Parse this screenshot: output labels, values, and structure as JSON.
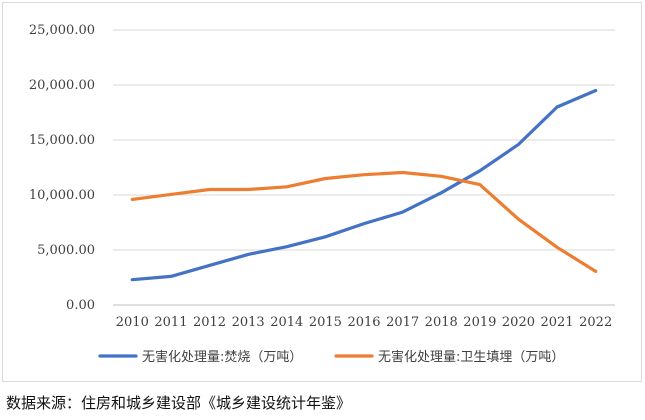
{
  "chart_data": {
    "type": "line",
    "title": "",
    "xlabel": "",
    "ylabel": "",
    "x": [
      2010,
      2011,
      2012,
      2013,
      2014,
      2015,
      2016,
      2017,
      2018,
      2019,
      2020,
      2021,
      2022
    ],
    "ylim": [
      0,
      25000
    ],
    "yticks": [
      "0.00",
      "5,000.00",
      "10,000.00",
      "15,000.00",
      "20,000.00",
      "25,000.00"
    ],
    "ytick_values": [
      0,
      5000,
      10000,
      15000,
      20000,
      25000
    ],
    "grid": "horizontal",
    "legend_position": "bottom",
    "series": [
      {
        "name": "无害化处理量:焚烧（万吨）",
        "color": "#4472c4",
        "values": [
          2300,
          2600,
          3600,
          4600,
          5300,
          6200,
          7400,
          8450,
          10200,
          12200,
          14600,
          18000,
          19500
        ]
      },
      {
        "name": "无害化处理量:卫生填埋（万吨）",
        "color": "#ed7d31",
        "values": [
          9600,
          10050,
          10500,
          10500,
          10750,
          11500,
          11850,
          12050,
          11700,
          10950,
          7800,
          5250,
          3050
        ]
      }
    ]
  },
  "source_text": "数据来源：住房和城乡建设部《城乡建设统计年鉴》"
}
